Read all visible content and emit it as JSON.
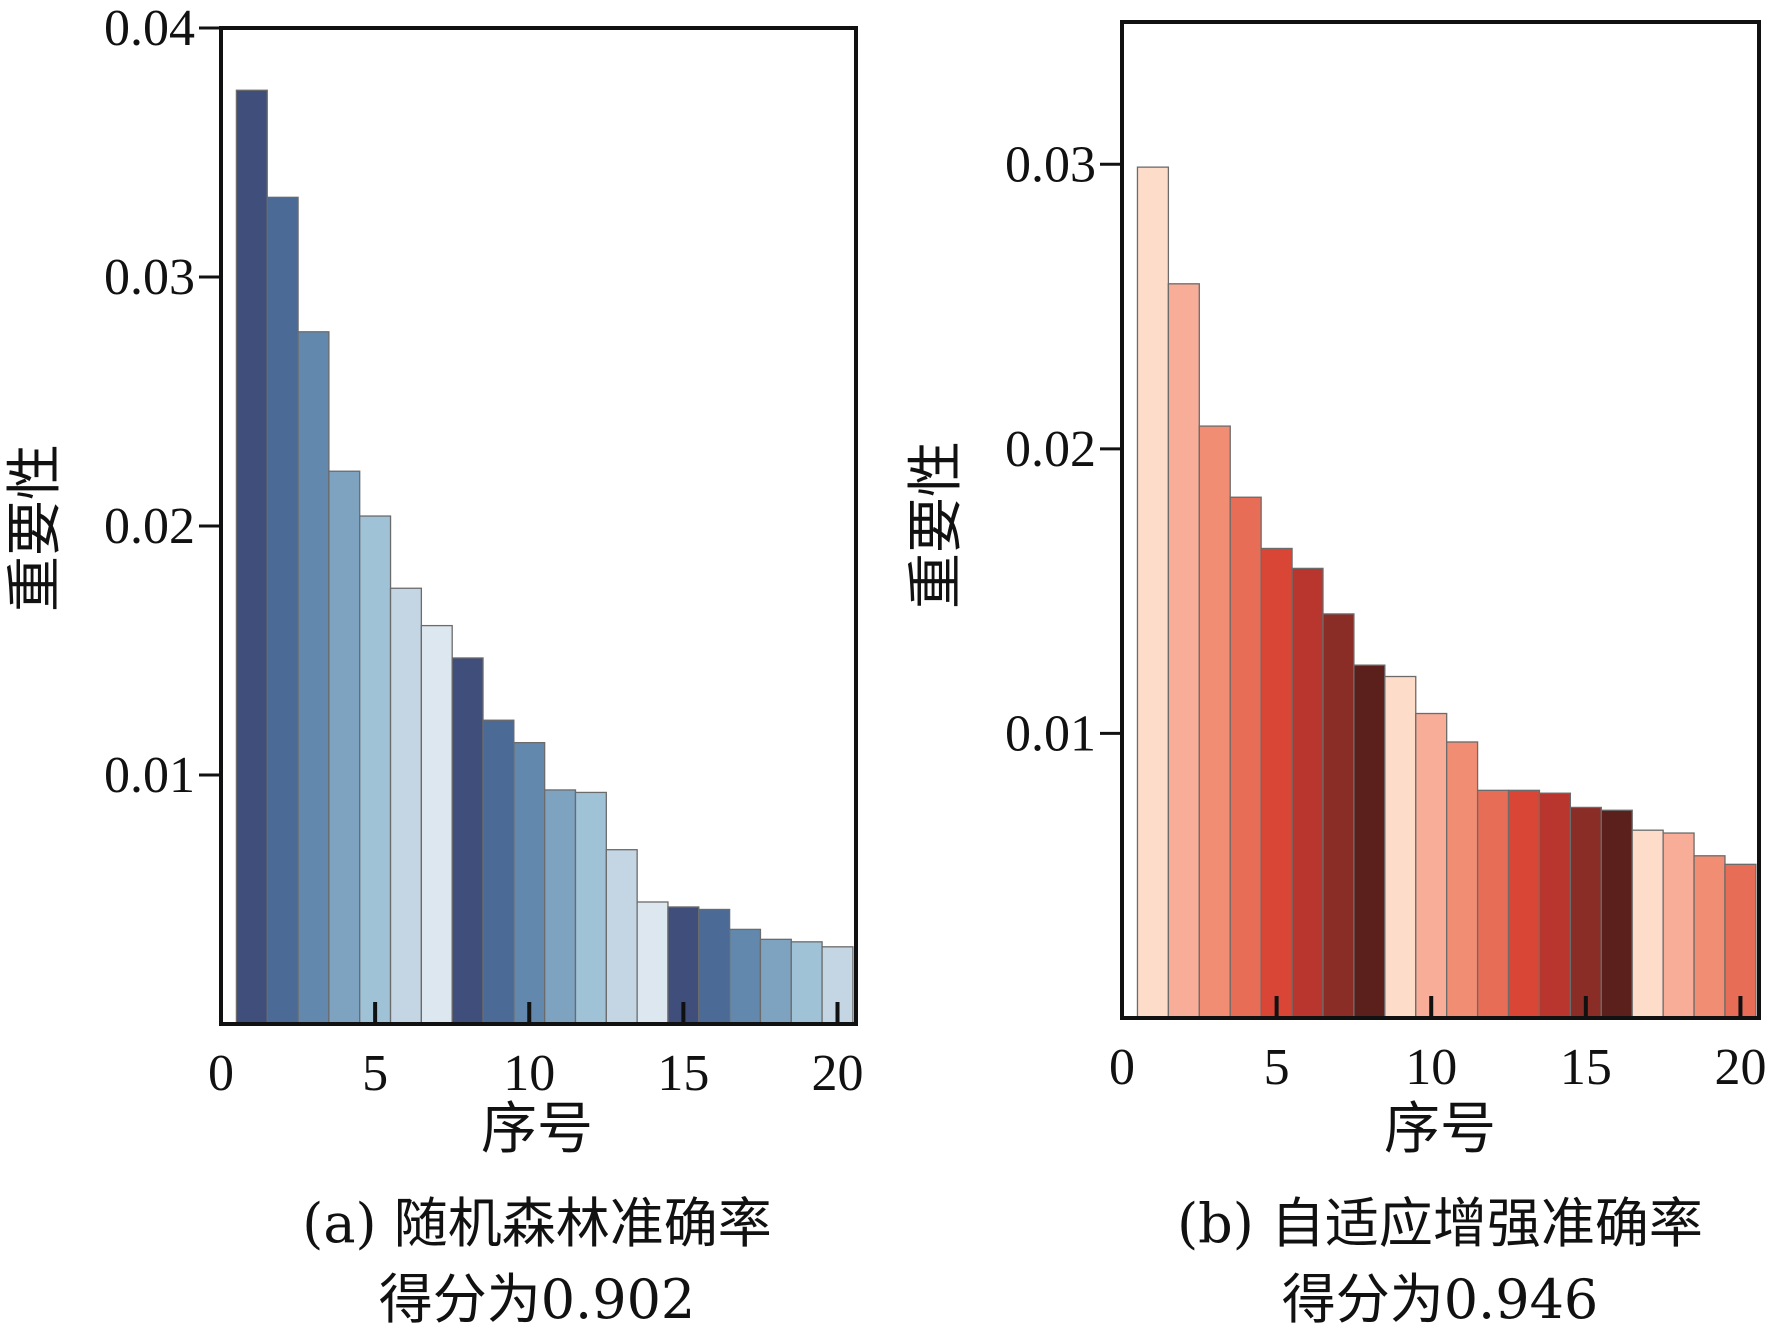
{
  "chart_data": [
    {
      "type": "bar",
      "caption_line1": "(a) 随机森林准确率",
      "caption_line2": "得分为0.902",
      "xlabel": "序号",
      "ylabel": "重要性",
      "xlim": [
        0,
        20.6
      ],
      "ylim": [
        0,
        0.04
      ],
      "xticks": [
        0,
        5,
        10,
        15,
        20
      ],
      "yticks": [
        0.01,
        0.02,
        0.03,
        0.04
      ],
      "ytick_labels": [
        "0.01",
        "0.02",
        "0.03",
        "0.04"
      ],
      "x": [
        1,
        2,
        3,
        4,
        5,
        6,
        7,
        8,
        9,
        10,
        11,
        12,
        13,
        14,
        15,
        16,
        17,
        18,
        19,
        20
      ],
      "values": [
        0.0375,
        0.0332,
        0.0278,
        0.0222,
        0.0204,
        0.0175,
        0.016,
        0.0147,
        0.0122,
        0.0113,
        0.0094,
        0.0093,
        0.007,
        0.0049,
        0.0047,
        0.0046,
        0.0038,
        0.0034,
        0.0033,
        0.0031
      ],
      "colors": [
        "#404e7c",
        "#4b6a96",
        "#6388ad",
        "#7ea3c0",
        "#a0c2d6",
        "#c4d6e3",
        "#dde7ef",
        "#404e7c",
        "#4b6a96",
        "#6388ad",
        "#7ea3c0",
        "#a0c2d6",
        "#c4d6e3",
        "#dde7ef",
        "#404e7c",
        "#4b6a96",
        "#6388ad",
        "#7ea3c0",
        "#a0c2d6",
        "#c4d6e3"
      ],
      "grid": false
    },
    {
      "type": "bar",
      "caption_line1": "(b) 自适应增强准确率",
      "caption_line2": "得分为0.946",
      "xlabel": "序号",
      "ylabel": "重要性",
      "xlim": [
        0,
        20.6
      ],
      "ylim": [
        0,
        0.035
      ],
      "xticks": [
        0,
        5,
        10,
        15,
        20
      ],
      "yticks": [
        0.01,
        0.02,
        0.03
      ],
      "ytick_labels": [
        "0.01",
        "0.02",
        "0.03"
      ],
      "x": [
        1,
        2,
        3,
        4,
        5,
        6,
        7,
        8,
        9,
        10,
        11,
        12,
        13,
        14,
        15,
        16,
        17,
        18,
        19,
        20
      ],
      "values": [
        0.0299,
        0.0258,
        0.0208,
        0.0183,
        0.0165,
        0.0158,
        0.0142,
        0.0124,
        0.012,
        0.0107,
        0.0097,
        0.008,
        0.008,
        0.0079,
        0.0074,
        0.0073,
        0.0066,
        0.0065,
        0.0057,
        0.0054
      ],
      "colors": [
        "#fddcca",
        "#f7ad97",
        "#f08d73",
        "#e86d56",
        "#da4636",
        "#b8362d",
        "#8b2d27",
        "#5c201c",
        "#fddcca",
        "#f7ad97",
        "#f08d73",
        "#e86d56",
        "#da4636",
        "#b8362d",
        "#8b2d27",
        "#5c201c",
        "#fddcca",
        "#f7ad97",
        "#f08d73",
        "#e86d56"
      ],
      "grid": false
    }
  ]
}
